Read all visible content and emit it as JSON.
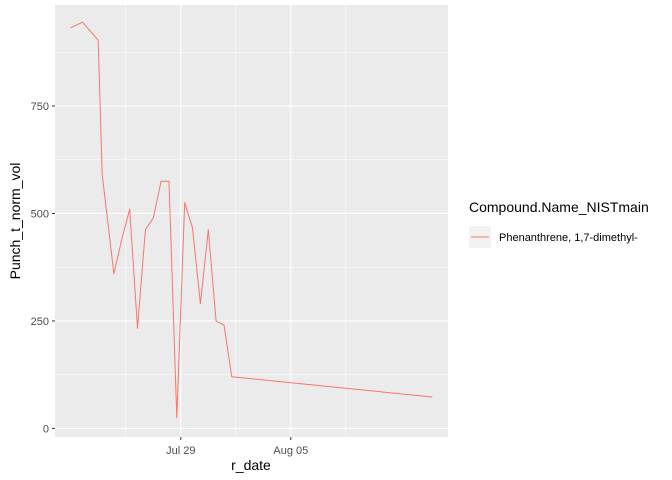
{
  "chart_data": {
    "type": "line",
    "title": "",
    "xlabel": "r_date",
    "ylabel": "Punch_t_norm_vol",
    "x_tick_labels": [
      "Jul 29",
      "Aug 05"
    ],
    "y_tick_labels": [
      "0",
      "250",
      "500",
      "750"
    ],
    "xlim": [
      "2024-07-21",
      "2024-08-15"
    ],
    "ylim": [
      -20,
      985
    ],
    "grid": true,
    "legend": {
      "title": "Compound.Name_NISTmain",
      "placement": "right"
    },
    "series": [
      {
        "name": "Phenanthrene, 1,7-dimethyl-",
        "color": "#F8766D",
        "points": [
          {
            "x": "2024-07-22",
            "y": 932
          },
          {
            "x": "2024-07-22T18:00",
            "y": 945
          },
          {
            "x": "2024-07-23T18:00",
            "y": 903
          },
          {
            "x": "2024-07-24",
            "y": 590
          },
          {
            "x": "2024-07-24T18:00",
            "y": 360
          },
          {
            "x": "2024-07-25T06:00",
            "y": 440
          },
          {
            "x": "2024-07-25T18:00",
            "y": 510
          },
          {
            "x": "2024-07-26T06:00",
            "y": 233
          },
          {
            "x": "2024-07-26T18:00",
            "y": 462
          },
          {
            "x": "2024-07-27T06:00",
            "y": 490
          },
          {
            "x": "2024-07-27T18:00",
            "y": 575
          },
          {
            "x": "2024-07-28T06:00",
            "y": 575
          },
          {
            "x": "2024-07-28T18:00",
            "y": 25
          },
          {
            "x": "2024-07-29T06:00",
            "y": 525
          },
          {
            "x": "2024-07-29T18:00",
            "y": 467
          },
          {
            "x": "2024-07-30T06:00",
            "y": 290
          },
          {
            "x": "2024-07-30T18:00",
            "y": 462
          },
          {
            "x": "2024-07-31T06:00",
            "y": 250
          },
          {
            "x": "2024-07-31T18:00",
            "y": 240
          },
          {
            "x": "2024-08-01T06:00",
            "y": 120
          },
          {
            "x": "2024-08-14",
            "y": 73
          }
        ]
      }
    ]
  }
}
